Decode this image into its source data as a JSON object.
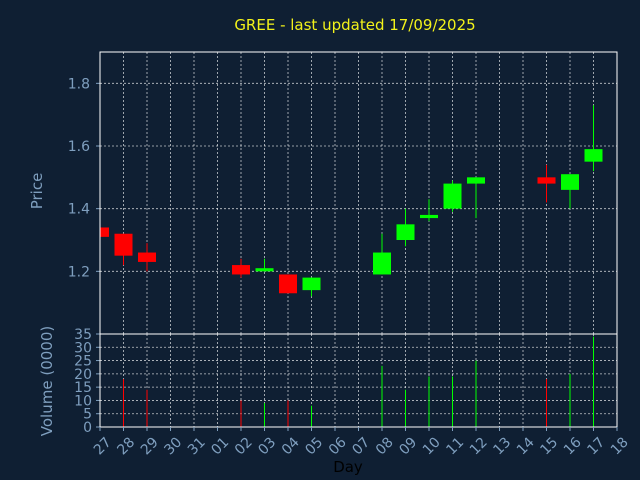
{
  "title": "GREE - last updated 17/09/2025",
  "colors": {
    "background": "#0f1f33",
    "up": "#00ff00",
    "down": "#ff0000",
    "title": "#f2f21a",
    "axis_text": "#7f9fbf",
    "grid": "#ffffff"
  },
  "chart_data": [
    {
      "type": "candlestick",
      "ylabel": "Price",
      "ylim": [
        1.0,
        1.9
      ],
      "yticks": [
        "1.2",
        "1.4",
        "1.6",
        "1.8"
      ],
      "ytick_values": [
        1.2,
        1.4,
        1.6,
        1.8
      ],
      "grid": true,
      "categories": [
        "27",
        "28",
        "29",
        "30",
        "31",
        "01",
        "02",
        "03",
        "04",
        "05",
        "06",
        "07",
        "08",
        "09",
        "10",
        "11",
        "12",
        "13",
        "14",
        "15",
        "16",
        "17",
        "18"
      ],
      "candles": [
        {
          "x": "27",
          "open": 1.34,
          "high": 1.34,
          "low": 1.31,
          "close": 1.31
        },
        {
          "x": "28",
          "open": 1.32,
          "high": 1.32,
          "low": 1.22,
          "close": 1.25
        },
        {
          "x": "29",
          "open": 1.26,
          "high": 1.29,
          "low": 1.2,
          "close": 1.23
        },
        {
          "x": "02",
          "open": 1.22,
          "high": 1.24,
          "low": 1.18,
          "close": 1.19
        },
        {
          "x": "03",
          "open": 1.2,
          "high": 1.24,
          "low": 1.2,
          "close": 1.21
        },
        {
          "x": "04",
          "open": 1.19,
          "high": 1.19,
          "low": 1.13,
          "close": 1.13
        },
        {
          "x": "05",
          "open": 1.14,
          "high": 1.18,
          "low": 1.12,
          "close": 1.18
        },
        {
          "x": "08",
          "open": 1.19,
          "high": 1.32,
          "low": 1.19,
          "close": 1.26
        },
        {
          "x": "09",
          "open": 1.3,
          "high": 1.4,
          "low": 1.28,
          "close": 1.35
        },
        {
          "x": "10",
          "open": 1.37,
          "high": 1.43,
          "low": 1.36,
          "close": 1.38
        },
        {
          "x": "11",
          "open": 1.4,
          "high": 1.49,
          "low": 1.39,
          "close": 1.48
        },
        {
          "x": "12",
          "open": 1.48,
          "high": 1.5,
          "low": 1.37,
          "close": 1.5
        },
        {
          "x": "15",
          "open": 1.5,
          "high": 1.54,
          "low": 1.42,
          "close": 1.48
        },
        {
          "x": "16",
          "open": 1.46,
          "high": 1.51,
          "low": 1.4,
          "close": 1.51
        },
        {
          "x": "17",
          "open": 1.55,
          "high": 1.73,
          "low": 1.52,
          "close": 1.59
        }
      ]
    },
    {
      "type": "bar",
      "ylabel": "Volume (0000)",
      "xlabel": "Day",
      "ylim": [
        0,
        35
      ],
      "yticks": [
        "0",
        "5",
        "10",
        "15",
        "20",
        "25",
        "30",
        "35"
      ],
      "ytick_values": [
        0,
        5,
        10,
        15,
        20,
        25,
        30,
        35
      ],
      "grid": true,
      "categories": [
        "27",
        "28",
        "29",
        "30",
        "31",
        "01",
        "02",
        "03",
        "04",
        "05",
        "06",
        "07",
        "08",
        "09",
        "10",
        "11",
        "12",
        "13",
        "14",
        "15",
        "16",
        "17",
        "18"
      ],
      "volumes": [
        {
          "x": "28",
          "value": 18,
          "direction": "down"
        },
        {
          "x": "29",
          "value": 14,
          "direction": "down"
        },
        {
          "x": "02",
          "value": 10,
          "direction": "down"
        },
        {
          "x": "03",
          "value": 9,
          "direction": "up"
        },
        {
          "x": "04",
          "value": 10,
          "direction": "down"
        },
        {
          "x": "05",
          "value": 8,
          "direction": "up"
        },
        {
          "x": "08",
          "value": 23,
          "direction": "up"
        },
        {
          "x": "09",
          "value": 14,
          "direction": "up"
        },
        {
          "x": "10",
          "value": 19,
          "direction": "up"
        },
        {
          "x": "11",
          "value": 19,
          "direction": "up"
        },
        {
          "x": "12",
          "value": 25,
          "direction": "up"
        },
        {
          "x": "15",
          "value": 18,
          "direction": "down"
        },
        {
          "x": "16",
          "value": 20,
          "direction": "up"
        },
        {
          "x": "17",
          "value": 34,
          "direction": "up"
        }
      ]
    }
  ]
}
